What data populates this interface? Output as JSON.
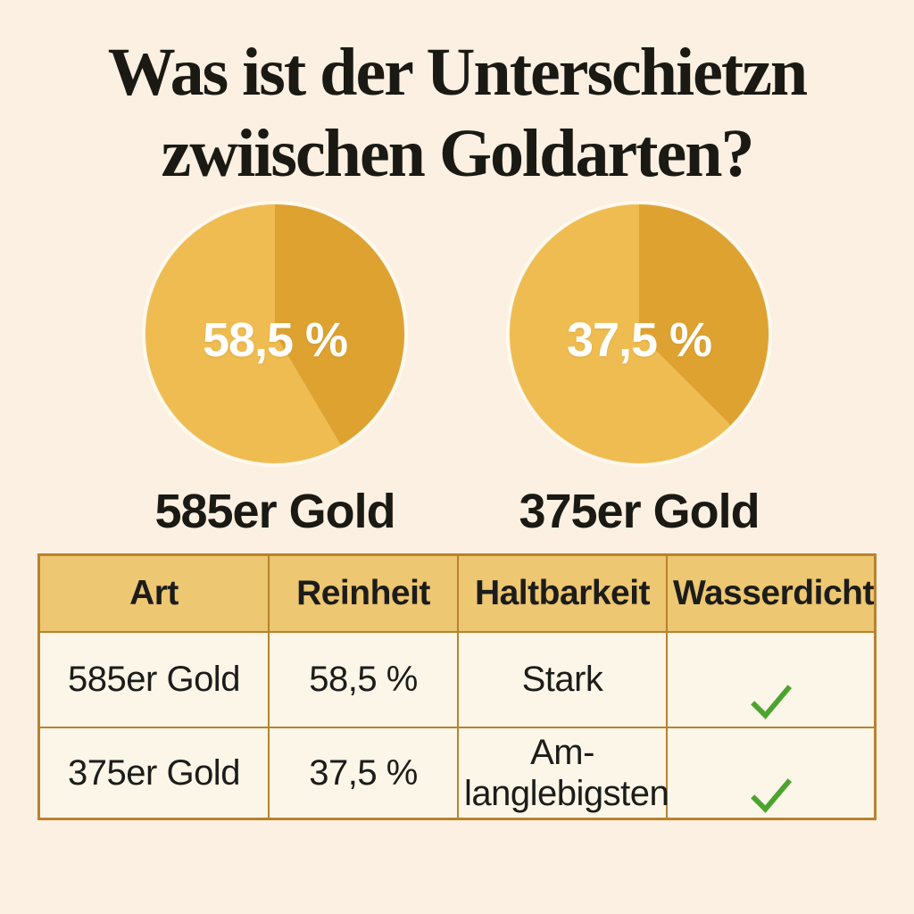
{
  "title": {
    "lines": [
      "Was ist der Unterschietzn",
      "zwiischen Goldarten?"
    ]
  },
  "colors": {
    "background": "#FBF0E2",
    "title_text": "#1A1913",
    "gold_light": "#EFBC52",
    "gold_dark": "#DEA231",
    "table_header_bg": "#EDC771",
    "cell_bg": "#FCF6E8",
    "border": "#B9822D",
    "check_green": "#4CA42E",
    "percent_text": "#FFFFFF"
  },
  "chart_data": [
    {
      "type": "pie",
      "title": "585er Gold",
      "center_label": "58,5 %",
      "start_angle_deg": 0,
      "direction": "clockwise",
      "legend_position": "none",
      "slices": [
        {
          "label": "dark-segment",
          "value": 41.5,
          "color": "#DEA231"
        },
        {
          "label": "light-segment",
          "value": 58.5,
          "color": "#EFBC52"
        }
      ]
    },
    {
      "type": "pie",
      "title": "375er Gold",
      "center_label": "37,5 %",
      "start_angle_deg": 0,
      "direction": "clockwise",
      "legend_position": "none",
      "slices": [
        {
          "label": "dark-segment",
          "value": 37.5,
          "color": "#DEA231"
        },
        {
          "label": "light-segment",
          "value": 62.5,
          "color": "#EFBC52"
        }
      ]
    },
    {
      "type": "table",
      "headers": [
        "Art",
        "Reinheit",
        "Haltbarkeit",
        "Wasserdicht"
      ],
      "rows": [
        {
          "cells": [
            "585er Gold",
            "58,5 %",
            "Stark",
            "✓"
          ],
          "wasserdicht_check": true
        },
        {
          "cells": [
            "375er Gold",
            "37,5 %",
            "Am-\nlanglebigsten",
            "✓"
          ],
          "wasserdicht_check": true
        }
      ]
    }
  ]
}
